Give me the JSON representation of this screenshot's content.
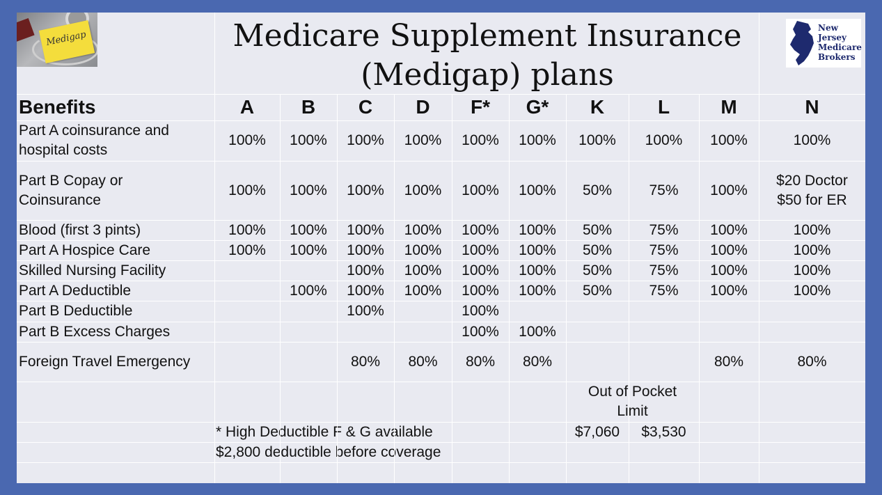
{
  "title": "Medicare Supplement Insurance (Medigap) plans",
  "photo_note_text": "Medigap",
  "logo": {
    "icon": "new-jersey-state-silhouette",
    "lines": [
      "New",
      "Jersey",
      "Medicare",
      "Brokers"
    ]
  },
  "table": {
    "header_label": "Benefits",
    "plans": [
      "A",
      "B",
      "C",
      "D",
      "F*",
      "G*",
      "K",
      "L",
      "M",
      "N"
    ],
    "rows": [
      {
        "benefit": "Part A coinsurance and\nhospital costs",
        "values": [
          "100%",
          "100%",
          "100%",
          "100%",
          "100%",
          "100%",
          "100%",
          "100%",
          "100%",
          "100%"
        ]
      },
      {
        "benefit": "Part B Copay or\nCoinsurance",
        "values": [
          "100%",
          "100%",
          "100%",
          "100%",
          "100%",
          "100%",
          "50%",
          "75%",
          "100%",
          "$20 Doctor\n$50 for ER"
        ]
      },
      {
        "benefit": "Blood (first 3 pints)",
        "values": [
          "100%",
          "100%",
          "100%",
          "100%",
          "100%",
          "100%",
          "50%",
          "75%",
          "100%",
          "100%"
        ]
      },
      {
        "benefit": "Part A Hospice Care",
        "values": [
          "100%",
          "100%",
          "100%",
          "100%",
          "100%",
          "100%",
          "50%",
          "75%",
          "100%",
          "100%"
        ]
      },
      {
        "benefit": "Skilled Nursing Facility",
        "values": [
          "",
          "",
          "100%",
          "100%",
          "100%",
          "100%",
          "50%",
          "75%",
          "100%",
          "100%"
        ]
      },
      {
        "benefit": "Part A Deductible",
        "values": [
          "",
          "100%",
          "100%",
          "100%",
          "100%",
          "100%",
          "50%",
          "75%",
          "100%",
          "100%"
        ]
      },
      {
        "benefit": "Part B Deductible",
        "values": [
          "",
          "",
          "100%",
          "",
          "100%",
          "",
          "",
          "",
          "",
          ""
        ]
      },
      {
        "benefit": "Part B Excess Charges",
        "values": [
          "",
          "",
          "",
          "",
          "100%",
          "100%",
          "",
          "",
          "",
          ""
        ]
      },
      {
        "benefit": "Foreign Travel Emergency",
        "values": [
          "",
          "",
          "80%",
          "80%",
          "80%",
          "80%",
          "",
          "",
          "80%",
          "80%"
        ]
      }
    ],
    "oop_label": "Out of Pocket\nLimit",
    "oop_values": {
      "K": "$7,060",
      "L": "$3,530"
    },
    "footnote_line1": "* High Deductible F & G available",
    "footnote_line2": "$2,800 deductible before coverage"
  }
}
